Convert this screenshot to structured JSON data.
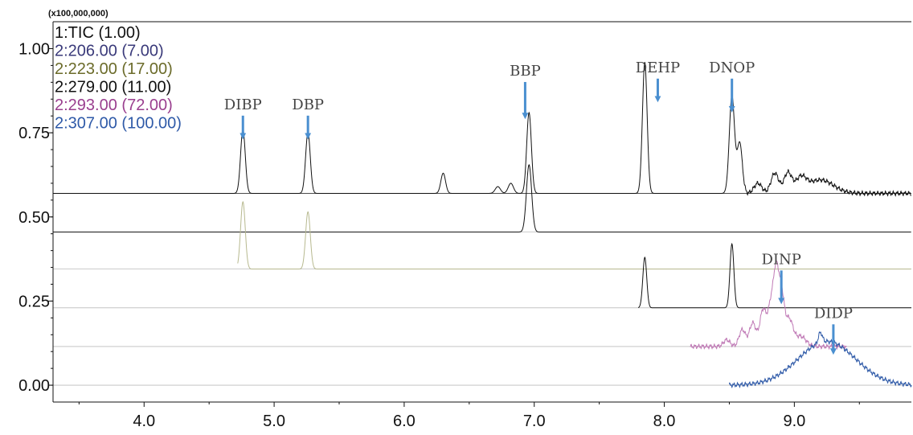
{
  "chart_data": {
    "type": "line",
    "title": "",
    "xlabel": "",
    "ylabel": "",
    "y_multiplier_label": "(x100,000,000)",
    "xlim": [
      3.3,
      9.9
    ],
    "ylim": [
      -0.05,
      1.08
    ],
    "x_ticks": [
      {
        "value": 4.0,
        "label": "4.0"
      },
      {
        "value": 5.0,
        "label": "5.0"
      },
      {
        "value": 6.0,
        "label": "6.0"
      },
      {
        "value": 7.0,
        "label": "7.0"
      },
      {
        "value": 8.0,
        "label": "8.0"
      },
      {
        "value": 9.0,
        "label": "9.0"
      }
    ],
    "y_ticks": [
      {
        "value": 0.0,
        "label": "0.00"
      },
      {
        "value": 0.25,
        "label": "0.25"
      },
      {
        "value": 0.5,
        "label": "0.50"
      },
      {
        "value": 0.75,
        "label": "0.75"
      },
      {
        "value": 1.0,
        "label": "1.00"
      }
    ],
    "legend": [
      {
        "text": "1:TIC (1.00)",
        "color": "#111111"
      },
      {
        "text": "2:206.00 (7.00)",
        "color": "#3a3a7a"
      },
      {
        "text": "2:223.00 (17.00)",
        "color": "#6b6b2a"
      },
      {
        "text": "2:279.00 (11.00)",
        "color": "#111111"
      },
      {
        "text": "2:293.00 (72.00)",
        "color": "#9a3f8f"
      },
      {
        "text": "2:307.00 (100.00)",
        "color": "#2f5aa8"
      }
    ],
    "series": [
      {
        "name": "1:TIC (1.00)",
        "color": "#111111",
        "baseline": 0.57,
        "x_range": [
          3.3,
          9.9
        ],
        "peaks": [
          {
            "x": 4.76,
            "h": 0.19,
            "w": 0.018
          },
          {
            "x": 5.26,
            "h": 0.18,
            "w": 0.018
          },
          {
            "x": 6.3,
            "h": 0.06,
            "w": 0.018
          },
          {
            "x": 6.72,
            "h": 0.02,
            "w": 0.02
          },
          {
            "x": 6.82,
            "h": 0.03,
            "w": 0.02
          },
          {
            "x": 6.96,
            "h": 0.24,
            "w": 0.018
          },
          {
            "x": 7.85,
            "h": 0.39,
            "w": 0.018
          },
          {
            "x": 8.52,
            "h": 0.29,
            "w": 0.02
          },
          {
            "x": 8.58,
            "h": 0.15,
            "w": 0.02
          },
          {
            "x": 8.72,
            "h": 0.03,
            "w": 0.03
          },
          {
            "x": 8.85,
            "h": 0.06,
            "w": 0.03
          },
          {
            "x": 8.95,
            "h": 0.06,
            "w": 0.03
          },
          {
            "x": 9.05,
            "h": 0.04,
            "w": 0.04
          },
          {
            "x": 9.2,
            "h": 0.04,
            "w": 0.1
          }
        ]
      },
      {
        "name": "2:206.00 (7.00)",
        "color": "#111111",
        "baseline": 0.455,
        "x_range": [
          3.3,
          9.9
        ],
        "peaks": [
          {
            "x": 6.96,
            "h": 0.2,
            "w": 0.02
          }
        ]
      },
      {
        "name": "2:223.00 (17.00)",
        "color": "#b7b98f",
        "baseline": 0.345,
        "x_range": [
          4.72,
          9.9
        ],
        "peaks": [
          {
            "x": 4.76,
            "h": 0.2,
            "w": 0.018
          },
          {
            "x": 5.26,
            "h": 0.17,
            "w": 0.018
          }
        ]
      },
      {
        "name": "2:279.00 (11.00)",
        "color": "#111111",
        "baseline": 0.23,
        "x_range": [
          7.8,
          9.9
        ],
        "peaks": [
          {
            "x": 7.85,
            "h": 0.15,
            "w": 0.015
          },
          {
            "x": 8.52,
            "h": 0.19,
            "w": 0.015
          }
        ]
      },
      {
        "name": "2:293.00 (72.00)",
        "color": "#c07ab6",
        "baseline": 0.115,
        "x_range": [
          8.2,
          9.4
        ],
        "peaks": [
          {
            "x": 8.48,
            "h": 0.02,
            "w": 0.025
          },
          {
            "x": 8.6,
            "h": 0.05,
            "w": 0.025
          },
          {
            "x": 8.68,
            "h": 0.07,
            "w": 0.025
          },
          {
            "x": 8.76,
            "h": 0.11,
            "w": 0.025
          },
          {
            "x": 8.82,
            "h": 0.12,
            "w": 0.022
          },
          {
            "x": 8.86,
            "h": 0.2,
            "w": 0.02
          },
          {
            "x": 8.9,
            "h": 0.15,
            "w": 0.022
          },
          {
            "x": 8.96,
            "h": 0.08,
            "w": 0.03
          },
          {
            "x": 9.05,
            "h": 0.03,
            "w": 0.04
          }
        ]
      },
      {
        "name": "2:307.00 (100.00)",
        "color": "#2f5aa8",
        "baseline": 0.0,
        "x_range": [
          8.5,
          9.9
        ],
        "peaks": [
          {
            "x": 9.25,
            "h": 0.13,
            "w": 0.22
          },
          {
            "x": 9.2,
            "h": 0.03,
            "w": 0.015
          }
        ]
      }
    ],
    "annotations": [
      {
        "text": "DIBP",
        "x": 4.76,
        "y": 0.82,
        "arrow_to": 0.74
      },
      {
        "text": "DBP",
        "x": 5.26,
        "y": 0.82,
        "arrow_to": 0.74
      },
      {
        "text": "BBP",
        "x": 6.93,
        "y": 0.92,
        "arrow_to": 0.8
      },
      {
        "text": "DEHP",
        "x": 7.95,
        "y": 0.93,
        "arrow_to": 0.85
      },
      {
        "text": "DNOP",
        "x": 8.52,
        "y": 0.93,
        "arrow_to": 0.82
      },
      {
        "text": "DINP",
        "x": 8.9,
        "y": 0.36,
        "arrow_to": 0.25
      },
      {
        "text": "DIDP",
        "x": 9.3,
        "y": 0.2,
        "arrow_to": 0.1
      }
    ]
  }
}
